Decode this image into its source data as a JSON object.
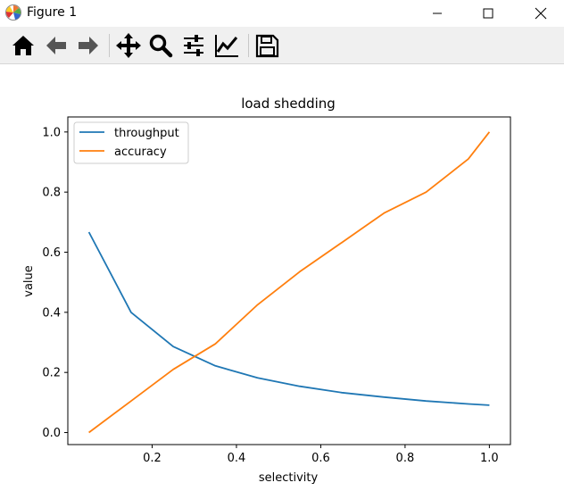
{
  "window": {
    "title": "Figure 1"
  },
  "toolbar": {
    "buttons": [
      {
        "icon": "home-icon"
      },
      {
        "icon": "back-arrow-icon"
      },
      {
        "icon": "forward-arrow-icon"
      },
      {
        "icon": "pan-icon"
      },
      {
        "icon": "zoom-icon"
      },
      {
        "icon": "subplots-config-icon"
      },
      {
        "icon": "edit-axes-icon"
      },
      {
        "icon": "save-icon"
      }
    ]
  },
  "chart_data": {
    "type": "line",
    "title": "load shedding",
    "xlabel": "selectivity",
    "ylabel": "value",
    "xlim": [
      0.0,
      1.05
    ],
    "ylim": [
      -0.04,
      1.05
    ],
    "xticks": [
      "0.2",
      "0.4",
      "0.6",
      "0.8",
      "1.0"
    ],
    "yticks": [
      "0.0",
      "0.2",
      "0.4",
      "0.6",
      "0.8",
      "1.0"
    ],
    "legend_position": "top-left",
    "grid": false,
    "series": [
      {
        "name": "throughput",
        "color": "#1f77b4",
        "x": [
          0.05,
          0.15,
          0.25,
          0.35,
          0.45,
          0.55,
          0.65,
          0.75,
          0.85,
          0.95,
          1.0
        ],
        "y": [
          0.667,
          0.4,
          0.286,
          0.222,
          0.182,
          0.154,
          0.133,
          0.118,
          0.105,
          0.095,
          0.091
        ]
      },
      {
        "name": "accuracy",
        "color": "#ff7f0e",
        "x": [
          0.05,
          0.15,
          0.25,
          0.35,
          0.45,
          0.55,
          0.65,
          0.75,
          0.85,
          0.95,
          1.0
        ],
        "y": [
          0.0,
          0.105,
          0.21,
          0.295,
          0.425,
          0.535,
          0.632,
          0.73,
          0.8,
          0.91,
          1.0
        ]
      }
    ]
  }
}
